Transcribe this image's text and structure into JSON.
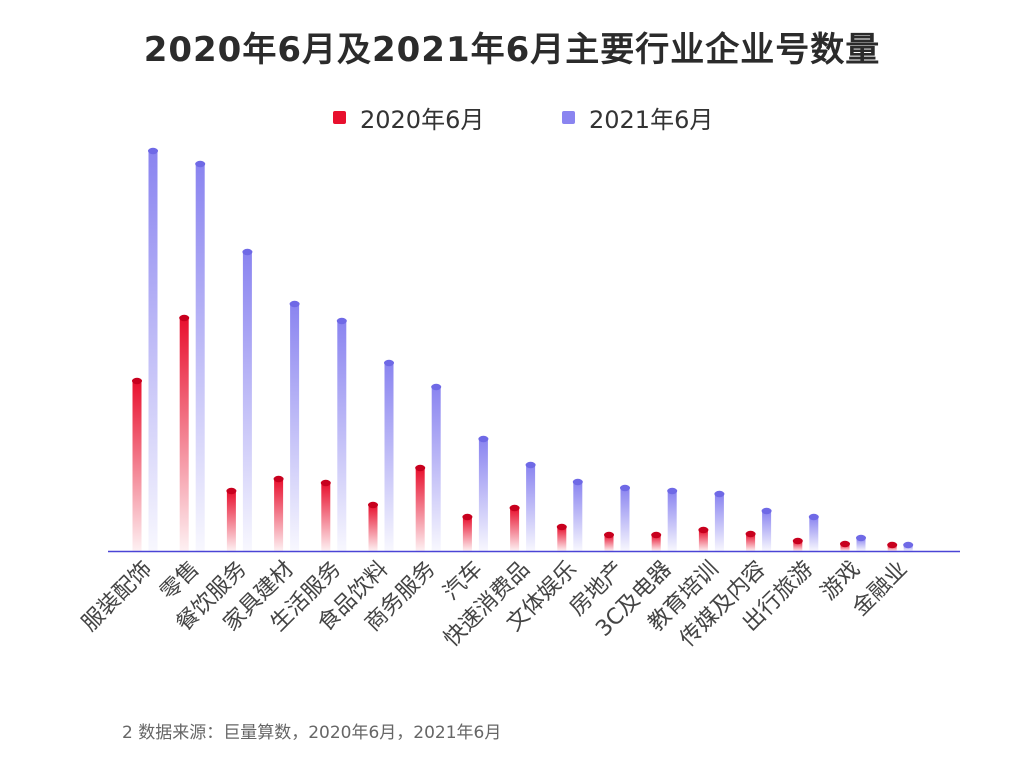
{
  "chart_data": {
    "type": "bar",
    "title": "2020年6月及2021年6月主要行业企业号数量",
    "categories": [
      "服装配饰",
      "零售",
      "餐饮服务",
      "家具建材",
      "生活服务",
      "食品饮料",
      "商务服务",
      "汽车",
      "快速消费品",
      "文体娱乐",
      "房地产",
      "3C及电器",
      "教育培训",
      "传媒及内容",
      "出行旅游",
      "游戏",
      "金融业"
    ],
    "series": [
      {
        "name": "2020年6月",
        "color": "#e8102e",
        "values": [
          170,
          233,
          60,
          72,
          68,
          46,
          83,
          34,
          43,
          24,
          16,
          16,
          21,
          17,
          10,
          7,
          6
        ]
      },
      {
        "name": "2021年6月",
        "color": "#8a84f0",
        "values": [
          400,
          387,
          299,
          247,
          230,
          188,
          164,
          112,
          86,
          69,
          63,
          60,
          57,
          40,
          34,
          13,
          6
        ]
      }
    ],
    "xlabel": "",
    "ylabel": "",
    "ylim": [
      0,
      410
    ],
    "grid": false,
    "legend": "top-center"
  },
  "source_note": "2 数据来源：巨量算数，2020年6月，2021年6月"
}
